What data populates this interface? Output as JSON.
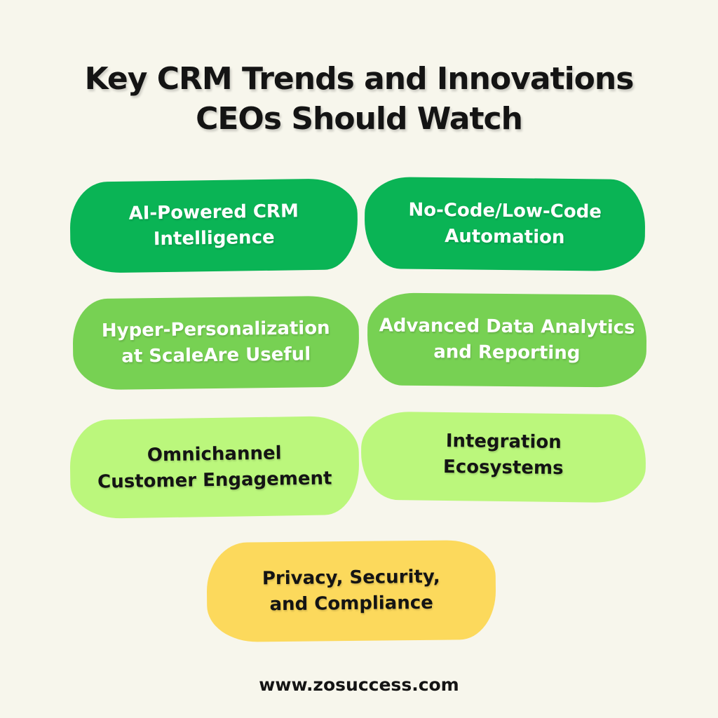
{
  "title": {
    "text": "Key CRM Trends and Innovations\nCEOs Should Watch"
  },
  "cards": [
    {
      "label": "AI-Powered CRM\nIntelligence",
      "bg_color": "#0ab455",
      "text_color": "#ffffff"
    },
    {
      "label": "No-Code/Low-Code\nAutomation",
      "bg_color": "#0ab455",
      "text_color": "#ffffff"
    },
    {
      "label": "Hyper-Personalization\nat ScaleAre Useful",
      "bg_color": "#77d153",
      "text_color": "#ffffff"
    },
    {
      "label": "Advanced Data Analytics\nand Reporting",
      "bg_color": "#77d153",
      "text_color": "#ffffff"
    },
    {
      "label": "Omnichannel\nCustomer Engagement",
      "bg_color": "#bbf77c",
      "text_color": "#141414"
    },
    {
      "label": "Integration\nEcosystems",
      "bg_color": "#bbf77c",
      "text_color": "#141414"
    },
    {
      "label": "Privacy, Security,\nand Compliance",
      "bg_color": "#fcd95c",
      "text_color": "#141414"
    }
  ],
  "footer": {
    "website": "www.zosuccess.com"
  },
  "colors": {
    "background": "#f7f6ec",
    "title_text": "#141414",
    "dark_green": "#0ab455",
    "medium_green": "#77d153",
    "light_green": "#bbf77c",
    "yellow": "#fcd95c"
  }
}
